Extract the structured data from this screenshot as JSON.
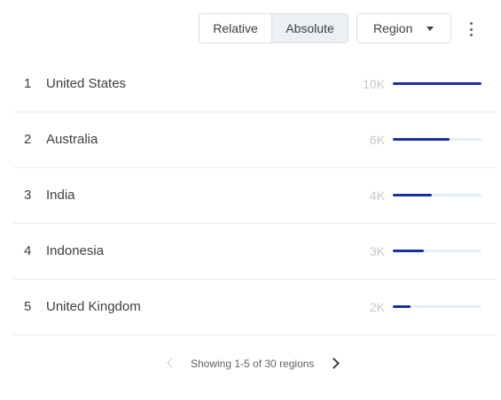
{
  "controls": {
    "relative_label": "Relative",
    "absolute_label": "Absolute",
    "selected_mode": "Absolute",
    "region_label": "Region",
    "region_caret_icon": "caret-down-icon",
    "more_icon": "more-vert-icon"
  },
  "accent_color": "#1a2fa0",
  "track_color": "#e3edf7",
  "rows": [
    {
      "rank": "1",
      "name": "United States",
      "value": "10K",
      "share": 1.0
    },
    {
      "rank": "2",
      "name": "Australia",
      "value": "6K",
      "share": 0.64
    },
    {
      "rank": "3",
      "name": "India",
      "value": "4K",
      "share": 0.44
    },
    {
      "rank": "4",
      "name": "Indonesia",
      "value": "3K",
      "share": 0.35
    },
    {
      "rank": "5",
      "name": "United Kingdom",
      "value": "2K",
      "share": 0.2
    }
  ],
  "pagination": {
    "text": "Showing 1-5 of 30 regions",
    "prev_icon": "chevron-left-icon",
    "next_icon": "chevron-right-icon"
  }
}
